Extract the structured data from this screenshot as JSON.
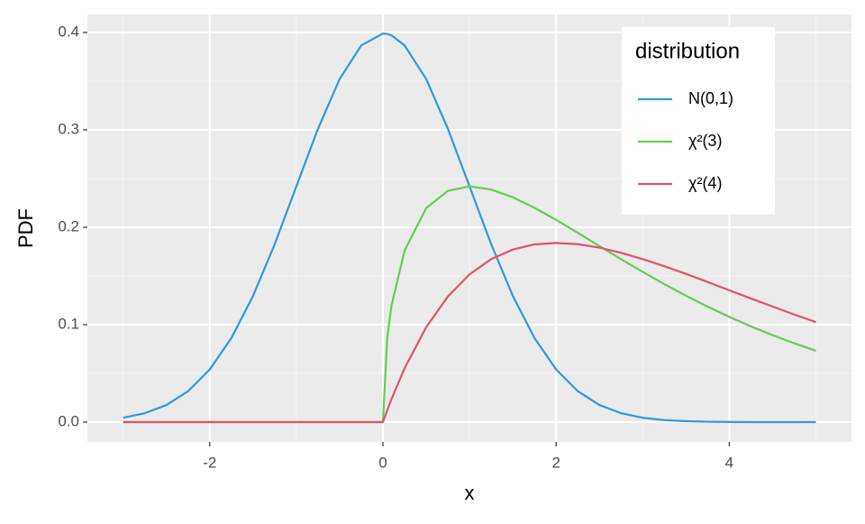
{
  "chart_data": {
    "type": "line",
    "x_label": "x",
    "y_label": "PDF",
    "x": [
      -3,
      -2.75,
      -2.5,
      -2.25,
      -2,
      -1.75,
      -1.5,
      -1.25,
      -1,
      -0.75,
      -0.5,
      -0.25,
      0,
      0.05,
      0.1,
      0.25,
      0.5,
      0.75,
      1,
      1.25,
      1.5,
      1.75,
      2,
      2.25,
      2.5,
      2.75,
      3,
      3.25,
      3.5,
      3.75,
      4,
      4.25,
      4.5,
      4.75,
      5
    ],
    "series": [
      {
        "name": "N(0,1)",
        "color": "#2f98de",
        "values": [
          0.0044,
          0.0091,
          0.0175,
          0.0317,
          0.054,
          0.0863,
          0.1295,
          0.1826,
          0.242,
          0.3011,
          0.3521,
          0.3867,
          0.3989,
          0.3984,
          0.397,
          0.3867,
          0.3521,
          0.3011,
          0.242,
          0.1826,
          0.1295,
          0.0863,
          0.054,
          0.0317,
          0.0175,
          0.0091,
          0.0044,
          0.002,
          0.0009,
          0.0004,
          0.0001,
          0,
          0,
          0,
          0
        ]
      },
      {
        "name": "χ²(3)",
        "color": "#61d04f",
        "values": [
          0,
          0,
          0,
          0,
          0,
          0,
          0,
          0,
          0,
          0,
          0,
          0,
          0,
          0.087,
          0.12,
          0.176,
          0.2197,
          0.2374,
          0.242,
          0.2387,
          0.2308,
          0.22,
          0.2076,
          0.1943,
          0.1807,
          0.1672,
          0.1542,
          0.1416,
          0.1297,
          0.1185,
          0.108,
          0.0982,
          0.0892,
          0.0809,
          0.0732
        ]
      },
      {
        "name": "χ²(4)",
        "color": "#df536b",
        "values": [
          0,
          0,
          0,
          0,
          0,
          0,
          0,
          0,
          0,
          0,
          0,
          0,
          0,
          0.0122,
          0.0238,
          0.0552,
          0.0974,
          0.1289,
          0.1516,
          0.1673,
          0.1771,
          0.1824,
          0.1839,
          0.1826,
          0.1791,
          0.1738,
          0.1673,
          0.16,
          0.1521,
          0.1438,
          0.1353,
          0.1269,
          0.1186,
          0.1104,
          0.1026
        ]
      }
    ],
    "xlim": [
      -3.413,
      5.411
    ],
    "xticks": [
      -2,
      0,
      2,
      4
    ],
    "ylim": [
      -0.0204,
      0.4185
    ],
    "yticks": [
      {
        "value": 0,
        "label": "0.0"
      },
      0.1,
      0.2,
      0.3,
      0.4
    ],
    "grid": true,
    "legend_title": "distribution",
    "legend_position": "top-right"
  }
}
